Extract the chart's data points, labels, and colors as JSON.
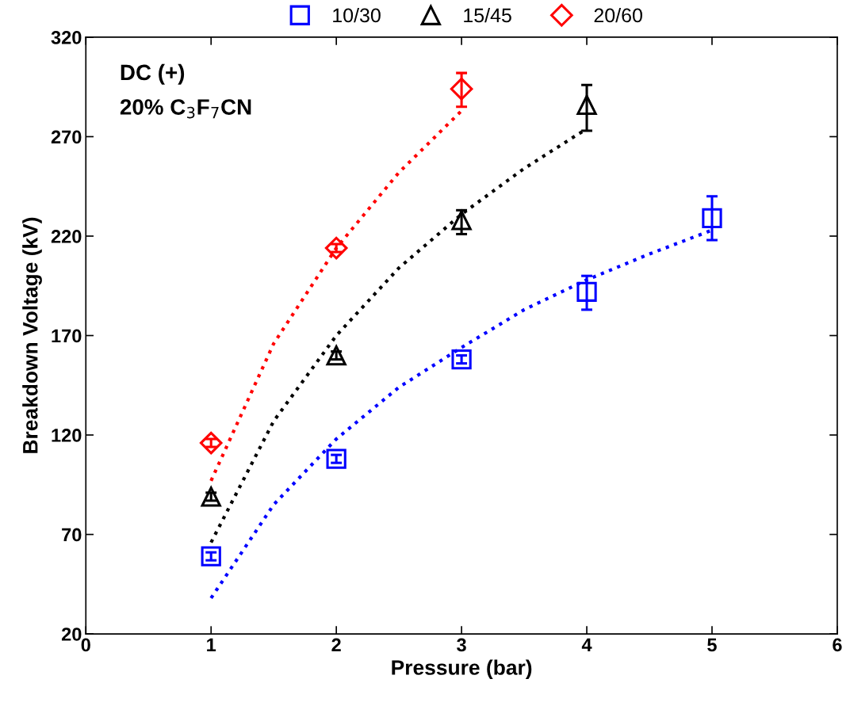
{
  "chart_data": {
    "type": "scatter",
    "xlabel": "Pressure (bar)",
    "ylabel": "Breakdown Voltage (kV)",
    "xlim": [
      0,
      6
    ],
    "xticks": [
      0,
      1,
      2,
      3,
      4,
      5,
      6
    ],
    "ylim": [
      20,
      320
    ],
    "yticks": [
      20,
      70,
      120,
      170,
      220,
      270,
      320
    ],
    "grid": false,
    "legend": "top",
    "annotations": [
      "DC (+)",
      "20% C$_{3}$F$_{7}$CN"
    ],
    "series": [
      {
        "name": "10/30",
        "color": "#0000ff",
        "marker": "square",
        "x": [
          1,
          2,
          3,
          4,
          5
        ],
        "values": [
          59,
          108,
          158,
          192,
          229
        ],
        "errors": [
          2,
          2,
          2,
          [
            183,
            200
          ],
          [
            218,
            240
          ]
        ]
      },
      {
        "name": "15/45",
        "color": "#000000",
        "marker": "triangle",
        "x": [
          1,
          2,
          3,
          4
        ],
        "values": [
          89,
          160,
          228,
          286
        ],
        "errors": [
          2,
          2,
          [
            221,
            233
          ],
          [
            273,
            296
          ]
        ]
      },
      {
        "name": "20/60",
        "color": "#ff0000",
        "marker": "diamond",
        "x": [
          1,
          2,
          3
        ],
        "values": [
          116,
          214,
          294
        ],
        "errors": [
          2,
          2,
          [
            285,
            302
          ]
        ]
      },
      {
        "type": "line",
        "color": "#0000ff",
        "line_style": "dotted",
        "x": [
          1,
          1.5,
          2,
          2.5,
          3,
          3.5,
          4,
          4.5,
          5
        ],
        "values": [
          38,
          85,
          118,
          144,
          164,
          183,
          198,
          211,
          223
        ]
      },
      {
        "type": "line",
        "color": "#000000",
        "line_style": "dotted",
        "x": [
          1,
          1.5,
          2,
          2.5,
          3,
          3.5,
          4
        ],
        "values": [
          66,
          127,
          170,
          204,
          231,
          254,
          274
        ]
      },
      {
        "type": "line",
        "color": "#ff0000",
        "line_style": "dotted",
        "x": [
          1,
          1.5,
          2,
          2.5,
          3
        ],
        "values": [
          97,
          166,
          214,
          252,
          283
        ]
      }
    ]
  }
}
